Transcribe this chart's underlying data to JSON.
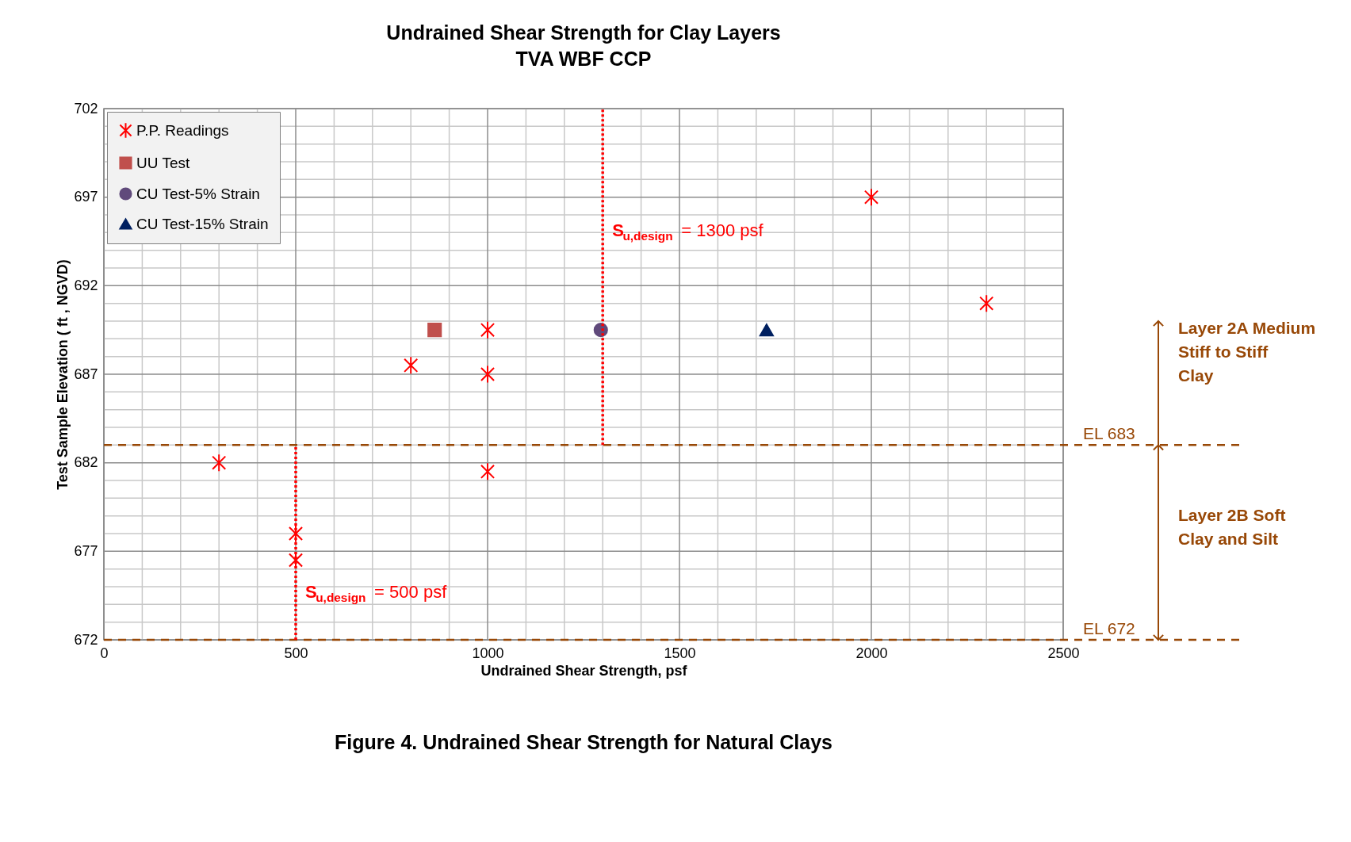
{
  "chart_data": {
    "type": "scatter",
    "title": "Undrained Shear Strength for Clay Layers",
    "subtitle": "TVA WBF CCP",
    "xlabel": "Undrained Shear Strength, psf",
    "ylabel": "Test Sample Elevation ( ft , NGVD)",
    "series": [
      {
        "name": "P.P. Readings",
        "color": "#ff0000",
        "marker": "cross",
        "x": [
          2000,
          2300,
          1000,
          800,
          1000,
          300,
          1000,
          500,
          500
        ],
        "values": [
          697,
          691,
          689.5,
          687.5,
          687,
          682,
          681.5,
          678,
          676.5
        ]
      },
      {
        "name": "UU Test",
        "color": "#c0504d",
        "marker": "square",
        "x": [
          862
        ],
        "values": [
          689.5
        ]
      },
      {
        "name": "CU Test-5% Strain",
        "color": "#604a7b",
        "marker": "circle",
        "x": [
          1295
        ],
        "values": [
          689.5
        ]
      },
      {
        "name": "CU Test-15% Strain",
        "color": "#002060",
        "marker": "triangle",
        "x": [
          1727
        ],
        "values": [
          689.5
        ]
      }
    ],
    "xlim": [
      0,
      2500
    ],
    "ylim": [
      672,
      702
    ],
    "xticks": [
      0,
      {
        "value": 100,
        "label": null
      },
      {
        "value": 200,
        "label": null
      },
      {
        "value": 300,
        "label": null
      },
      {
        "value": 400,
        "label": null
      },
      500,
      {
        "value": 600,
        "label": null
      },
      {
        "value": 700,
        "label": null
      },
      {
        "value": 800,
        "label": null
      },
      {
        "value": 900,
        "label": null
      },
      1000,
      {
        "value": 1100,
        "label": null
      },
      {
        "value": 1200,
        "label": null
      },
      {
        "value": 1300,
        "label": null
      },
      {
        "value": 1400,
        "label": null
      },
      1500,
      {
        "value": 1600,
        "label": null
      },
      {
        "value": 1700,
        "label": null
      },
      {
        "value": 1800,
        "label": null
      },
      {
        "value": 1900,
        "label": null
      },
      2000,
      {
        "value": 2100,
        "label": null
      },
      {
        "value": 2200,
        "label": null
      },
      {
        "value": 2300,
        "label": null
      },
      {
        "value": 2400,
        "label": null
      },
      2500
    ],
    "yticks": [
      672,
      {
        "value": 673,
        "label": null
      },
      {
        "value": 674,
        "label": null
      },
      {
        "value": 675,
        "label": null
      },
      {
        "value": 676,
        "label": null
      },
      677,
      {
        "value": 678,
        "label": null
      },
      {
        "value": 679,
        "label": null
      },
      {
        "value": 680,
        "label": null
      },
      {
        "value": 681,
        "label": null
      },
      682,
      {
        "value": 683,
        "label": null
      },
      {
        "value": 684,
        "label": null
      },
      {
        "value": 685,
        "label": null
      },
      {
        "value": 686,
        "label": null
      },
      687,
      {
        "value": 688,
        "label": null
      },
      {
        "value": 689,
        "label": null
      },
      {
        "value": 690,
        "label": null
      },
      {
        "value": 691,
        "label": null
      },
      692,
      {
        "value": 693,
        "label": null
      },
      {
        "value": 694,
        "label": null
      },
      {
        "value": 695,
        "label": null
      },
      {
        "value": 696,
        "label": null
      },
      697,
      {
        "value": 698,
        "label": null
      },
      {
        "value": 699,
        "label": null
      },
      {
        "value": 700,
        "label": null
      },
      {
        "value": 701,
        "label": null
      },
      702
    ],
    "grid": true,
    "legend": "top left",
    "ref_lines": [
      {
        "axis": "y",
        "value": 683,
        "label": "EL 683",
        "color": "#984807",
        "line_style": "dashed"
      },
      {
        "axis": "y",
        "value": 672,
        "label": "EL 672",
        "color": "#984807",
        "line_style": "dashed"
      },
      {
        "axis": "x",
        "value": 1300,
        "label": "S$_{u,design}$ = 1300 psf",
        "color": "#ff0000",
        "line_style": "dotted"
      },
      {
        "axis": "x",
        "value": 500,
        "label": "S$_{u,design}$ = 500 psf",
        "color": "#ff0000",
        "line_style": "dotted"
      }
    ],
    "annotations": [
      "Layer 2A Medium Stiff to Stiff Clay",
      "Layer 2B Soft Clay and Silt",
      "Figure 4. Undrained Shear Strength for Natural Clays"
    ]
  }
}
